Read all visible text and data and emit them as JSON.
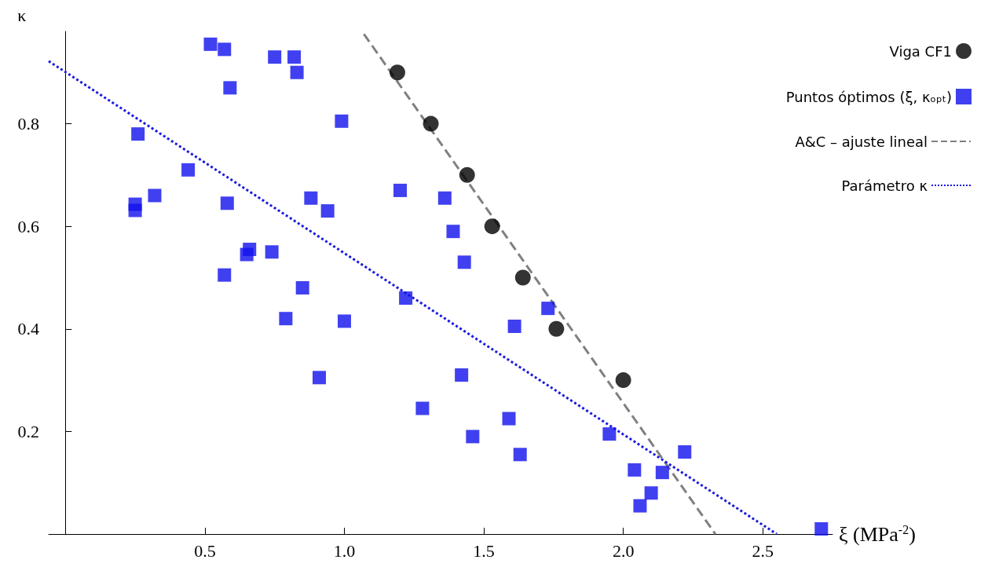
{
  "chart_data": {
    "type": "scatter",
    "xlabel": "ξ (MPa$^{-2}$)",
    "ylabel": "κ",
    "xlim": [
      -0.06,
      2.75
    ],
    "ylim": [
      0,
      0.98
    ],
    "xticks": [
      0.5,
      {
        "value": 1,
        "label": "1.0"
      },
      1.5,
      {
        "value": 2,
        "label": "2.0"
      },
      2.5
    ],
    "yticks": [
      0.2,
      0.4,
      0.6,
      0.8
    ],
    "grid": false,
    "legend": "top right",
    "series": [
      {
        "name": "Viga CF1",
        "marker": "circle",
        "color": "#000000",
        "x": [
          1.19,
          1.31,
          1.44,
          1.53,
          1.64,
          1.76,
          2.0
        ],
        "values": [
          0.9,
          0.8,
          0.7,
          0.6,
          0.5,
          0.4,
          0.3
        ]
      },
      {
        "name": "Puntos óptimos (ξ, κₒₚₜ)",
        "marker": "square",
        "color": "#1010ee",
        "x": [
          0.52,
          0.57,
          0.75,
          0.82,
          0.83,
          0.59,
          0.99,
          0.26,
          0.44,
          0.32,
          0.25,
          0.25,
          0.58,
          0.88,
          0.94,
          0.65,
          0.66,
          0.74,
          0.57,
          0.85,
          0.79,
          1.0,
          0.91,
          1.2,
          1.22,
          1.28,
          1.36,
          1.39,
          1.43,
          1.42,
          1.46,
          1.61,
          1.59,
          1.63,
          1.73,
          1.95,
          2.22,
          2.04,
          2.14,
          2.1,
          2.06,
          2.71
        ],
        "values": [
          0.955,
          0.945,
          0.93,
          0.93,
          0.9,
          0.87,
          0.805,
          0.78,
          0.71,
          0.66,
          0.643,
          0.631,
          0.645,
          0.655,
          0.63,
          0.545,
          0.555,
          0.55,
          0.505,
          0.48,
          0.42,
          0.415,
          0.305,
          0.67,
          0.46,
          0.245,
          0.655,
          0.59,
          0.53,
          0.31,
          0.19,
          0.405,
          0.225,
          0.155,
          0.44,
          0.195,
          0.16,
          0.125,
          0.12,
          0.08,
          0.055,
          0.01
        ]
      },
      {
        "name": "A&C – ajuste lineal",
        "type": "line",
        "marker": "none",
        "line_style": "dashed",
        "color": "#808080",
        "x": [
          1.07,
          2.33
        ],
        "values": [
          0.975,
          0
        ]
      },
      {
        "name": "Parámetro κ",
        "type": "line",
        "marker": "none",
        "line_style": "dotted",
        "color": "#1a1ae0",
        "x": [
          -0.06,
          2.55
        ],
        "values": [
          0.922,
          0
        ]
      }
    ]
  }
}
